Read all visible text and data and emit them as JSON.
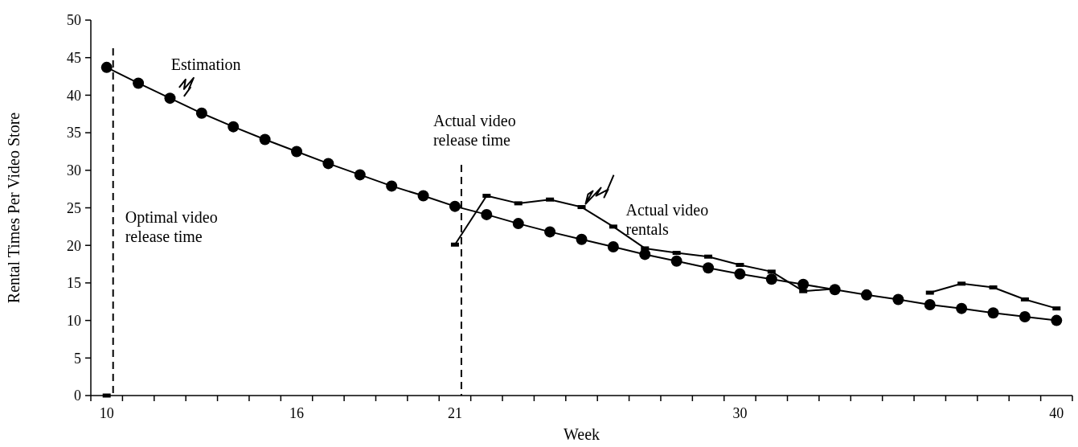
{
  "chart_data": {
    "type": "line",
    "xlabel": "Week",
    "ylabel": "Rental Times Per Video Store",
    "categories": [
      "10",
      null,
      null,
      null,
      null,
      null,
      "16",
      null,
      null,
      null,
      null,
      "21",
      null,
      null,
      null,
      null,
      null,
      null,
      null,
      null,
      "30",
      null,
      null,
      null,
      null,
      null,
      null,
      null,
      null,
      null,
      "40"
    ],
    "series": [
      {
        "name": "Estimation",
        "color": "#000000",
        "marker": "circle",
        "values": [
          43.7,
          41.6,
          39.6,
          37.6,
          35.8,
          34.1,
          32.5,
          30.9,
          29.4,
          27.9,
          26.6,
          25.2,
          24.1,
          22.9,
          21.8,
          20.8,
          19.8,
          18.8,
          17.9,
          17.0,
          16.2,
          15.5,
          14.8,
          14.1,
          13.4,
          12.8,
          12.1,
          11.6,
          11.0,
          10.5,
          10.0
        ]
      },
      {
        "name": "Actual video rentals",
        "color": "#000000",
        "marker": "square",
        "values": [
          0,
          null,
          null,
          null,
          null,
          null,
          null,
          null,
          null,
          null,
          null,
          20.1,
          26.6,
          25.6,
          26.1,
          25.1,
          22.5,
          19.6,
          19.0,
          18.5,
          17.4,
          16.5,
          13.9,
          14.2,
          null,
          null,
          13.7,
          14.9,
          14.4,
          12.8,
          11.6
        ]
      }
    ],
    "ylim": [
      0,
      50
    ],
    "yticks": [
      0,
      5,
      10,
      15,
      20,
      25,
      30,
      35,
      40,
      45,
      50
    ],
    "line_style": "solid",
    "ref_lines": [
      {
        "axis": "x",
        "value": "10",
        "label": "Optimal video release time",
        "line_style": "dashed"
      },
      {
        "axis": "x",
        "value": "21",
        "label": "Actual video release time",
        "line_style": "dashed"
      }
    ]
  }
}
